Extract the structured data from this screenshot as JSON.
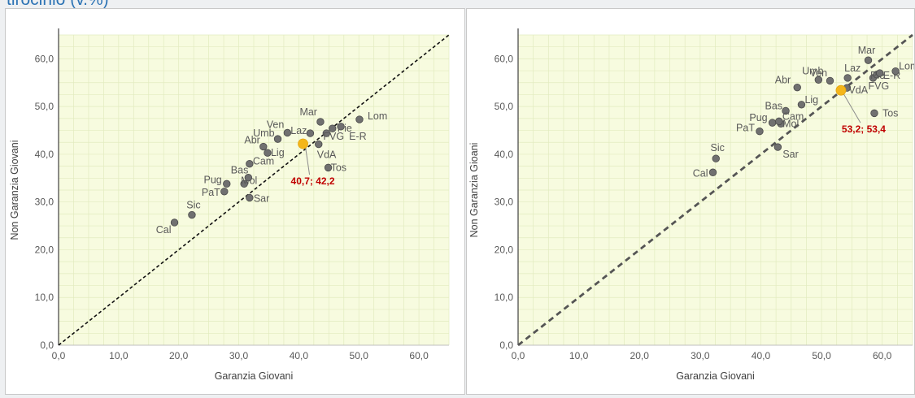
{
  "header": {
    "title": "tirocinio (v.%)"
  },
  "colors": {
    "plot_bg": "#f7fbdf",
    "grid": "#e2ebbf",
    "point": "#707070",
    "highlight": "#f4b61a",
    "highlight_label": "#c00000",
    "text": "#595959",
    "axis_label": "#404040"
  },
  "chart_data": [
    {
      "type": "scatter",
      "xlabel": "Garanzia Giovani",
      "ylabel": "Non Garanzia Giovani",
      "xlim": [
        0,
        65
      ],
      "ylim": [
        0,
        65
      ],
      "xticks": [
        "0,0",
        "10,0",
        "20,0",
        "30,0",
        "40,0",
        "50,0",
        "60,0"
      ],
      "yticks": [
        "0,0",
        "10,0",
        "20,0",
        "30,0",
        "40,0",
        "50,0",
        "60,0"
      ],
      "grid": true,
      "reference_line": {
        "style": "dashed",
        "from": [
          0,
          0
        ],
        "to": [
          65,
          65
        ]
      },
      "points": [
        {
          "label": "Cal",
          "x": 19.3,
          "y": 25.7
        },
        {
          "label": "Sic",
          "x": 22.2,
          "y": 27.3
        },
        {
          "label": "PaT",
          "x": 27.6,
          "y": 32.2
        },
        {
          "label": "Pug",
          "x": 28.0,
          "y": 33.8
        },
        {
          "label": "Mol",
          "x": 30.9,
          "y": 33.8
        },
        {
          "label": "Sar",
          "x": 31.8,
          "y": 30.9
        },
        {
          "label": "Bas",
          "x": 31.6,
          "y": 35.1
        },
        {
          "label": "Cam",
          "x": 31.8,
          "y": 38.0
        },
        {
          "label": "Abr",
          "x": 34.1,
          "y": 41.6
        },
        {
          "label": "Umb",
          "x": 36.5,
          "y": 43.2
        },
        {
          "label": "Lig",
          "x": 34.8,
          "y": 40.3
        },
        {
          "label": "Ven",
          "x": 38.1,
          "y": 44.5
        },
        {
          "label": "Laz",
          "x": 41.9,
          "y": 44.4
        },
        {
          "label": "Mar",
          "x": 43.6,
          "y": 46.8
        },
        {
          "label": "FVG",
          "x": 44.6,
          "y": 44.4
        },
        {
          "label": "Pie",
          "x": 45.6,
          "y": 45.4
        },
        {
          "label": "E-R",
          "x": 47.0,
          "y": 45.8
        },
        {
          "label": "VdA",
          "x": 43.3,
          "y": 42.1
        },
        {
          "label": "Tos",
          "x": 44.9,
          "y": 37.2
        },
        {
          "label": "Lom",
          "x": 50.1,
          "y": 47.3
        }
      ],
      "highlight": {
        "x": 40.7,
        "y": 42.2,
        "label": "40,7; 42,2"
      }
    },
    {
      "type": "scatter",
      "xlabel": "Garanzia Giovani",
      "ylabel": "Non Garanzia Gioani",
      "xlim": [
        0,
        65
      ],
      "ylim": [
        0,
        65
      ],
      "xticks": [
        "0,0",
        "10,0",
        "20,0",
        "30,0",
        "40,0",
        "50,0",
        "60,0"
      ],
      "yticks": [
        "0,0",
        "10,0",
        "20,0",
        "30,0",
        "40,0",
        "50,0",
        "60,0"
      ],
      "grid": true,
      "reference_line": {
        "style": "dashed",
        "from": [
          0,
          0
        ],
        "to": [
          65,
          65
        ]
      },
      "points": [
        {
          "label": "Cal",
          "x": 32.1,
          "y": 36.2
        },
        {
          "label": "Sic",
          "x": 32.6,
          "y": 39.1
        },
        {
          "label": "PaT",
          "x": 39.8,
          "y": 44.8
        },
        {
          "label": "Pug",
          "x": 41.9,
          "y": 46.6
        },
        {
          "label": "Mol",
          "x": 43.3,
          "y": 46.4
        },
        {
          "label": "Bas",
          "x": 44.1,
          "y": 49.1
        },
        {
          "label": "Cam",
          "x": 43.0,
          "y": 46.9
        },
        {
          "label": "Sar",
          "x": 42.8,
          "y": 41.5
        },
        {
          "label": "Lig",
          "x": 46.7,
          "y": 50.4
        },
        {
          "label": "Abr",
          "x": 46.0,
          "y": 54.0
        },
        {
          "label": "Ven",
          "x": 49.5,
          "y": 55.6
        },
        {
          "label": "Umb",
          "x": 51.4,
          "y": 55.4
        },
        {
          "label": "Laz",
          "x": 54.3,
          "y": 56.0
        },
        {
          "label": "VdA",
          "x": 54.2,
          "y": 53.9
        },
        {
          "label": "Mar",
          "x": 57.7,
          "y": 59.7
        },
        {
          "label": "FVG",
          "x": 58.5,
          "y": 56.0
        },
        {
          "label": "Pie",
          "x": 59.1,
          "y": 56.7
        },
        {
          "label": "E-R",
          "x": 59.6,
          "y": 57.0
        },
        {
          "label": "Lom",
          "x": 62.2,
          "y": 57.4
        },
        {
          "label": "Tos",
          "x": 58.7,
          "y": 48.6
        }
      ],
      "highlight": {
        "x": 53.2,
        "y": 53.4,
        "label": "53,2; 53,4"
      }
    }
  ]
}
